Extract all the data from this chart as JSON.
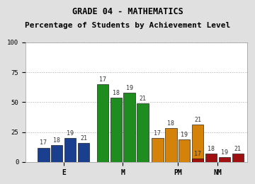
{
  "title": "GRADE 04 - MATHEMATICS",
  "subtitle": "Percentage of Students by Achievement Level",
  "groups": [
    "E",
    "M",
    "PM",
    "NM"
  ],
  "years": [
    "17",
    "18",
    "19",
    "21"
  ],
  "values": {
    "E": [
      12,
      14,
      20,
      16
    ],
    "M": [
      65,
      54,
      58,
      49
    ],
    "PM": [
      20,
      28,
      19,
      31
    ],
    "NM": [
      3,
      7,
      4,
      7
    ]
  },
  "colors": {
    "E": "#1a3f8f",
    "M": "#1e8c1e",
    "PM": "#d4820a",
    "NM": "#a01010"
  },
  "ylim": [
    0,
    100
  ],
  "yticks": [
    0,
    25,
    50,
    75,
    100
  ],
  "plot_bg_color": "#ffffff",
  "fig_bg_color": "#e0e0e0",
  "bar_width": 0.055,
  "group_centers": [
    0.18,
    0.46,
    0.72,
    0.91
  ],
  "title_fontsize": 8.5,
  "tick_fontsize": 6.5,
  "label_fontsize": 6.0,
  "xtick_fontsize": 7.0
}
